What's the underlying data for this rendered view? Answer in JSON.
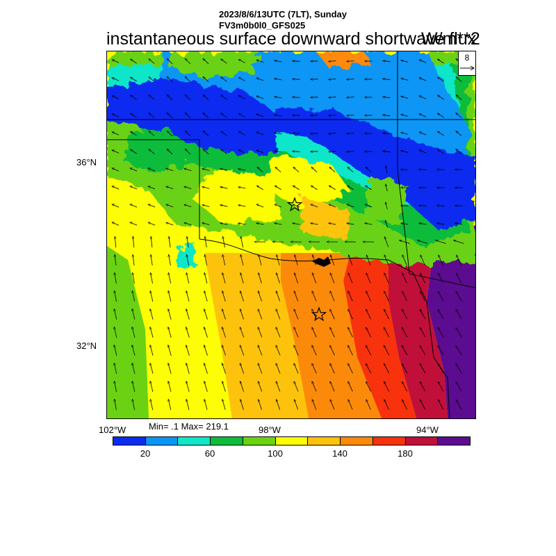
{
  "header": {
    "date_line": "2023/8/6/13UTC (7LT), Sunday",
    "model_line": "FV3m0b0l0_GFS025",
    "main_title": "instantaneous surface downward shortwave flux",
    "units": "W/m**2"
  },
  "map": {
    "lat_labels": [
      "36°N",
      "32°N"
    ],
    "lon_labels": [
      "102°W",
      "98°W",
      "94°W"
    ],
    "field_stats": "Min= .1 Max= 219.1",
    "reference_vector": "8",
    "markers": [
      "star",
      "star"
    ]
  },
  "colorbar": {
    "colors": [
      "#0a2cf0",
      "#0a96f5",
      "#10e6c8",
      "#0cbc3a",
      "#6ad212",
      "#fdfd06",
      "#fdc30c",
      "#fc8a0a",
      "#f7320c",
      "#c0103a",
      "#5c0c91"
    ],
    "labels": [
      "20",
      "60",
      "100",
      "140",
      "180"
    ]
  }
}
